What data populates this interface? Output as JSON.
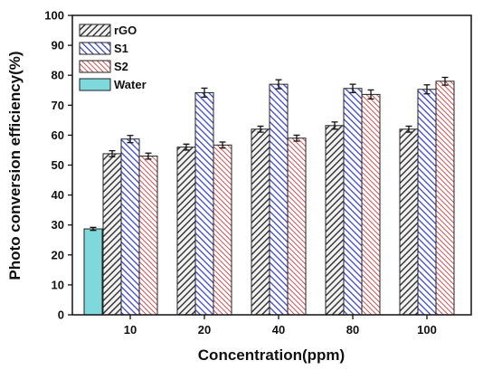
{
  "chart_data": {
    "type": "bar",
    "xlabel": "Concentration(ppm)",
    "ylabel": "Photo conversion efficiency(%)",
    "ylim": [
      0,
      100
    ],
    "yticks": [
      0,
      10,
      20,
      30,
      40,
      50,
      60,
      70,
      80,
      90,
      100
    ],
    "categories": [
      "10",
      "20",
      "40",
      "80",
      "100"
    ],
    "water": {
      "name": "Water",
      "value": 28.7,
      "error": 0.5,
      "color": "#7fd8dc"
    },
    "series": [
      {
        "name": "rGO",
        "color": "#3a3a3a",
        "pattern": "hatch-dark",
        "values": [
          53.8,
          56.0,
          62.0,
          63.2,
          62.0
        ],
        "errors": [
          1.0,
          1.0,
          1.0,
          1.2,
          1.0
        ]
      },
      {
        "name": "S1",
        "color": "#3b46d6",
        "pattern": "hatch-blue",
        "values": [
          58.7,
          74.2,
          77.0,
          75.6,
          75.3
        ],
        "errors": [
          1.2,
          1.5,
          1.5,
          1.4,
          1.5
        ]
      },
      {
        "name": "S2",
        "color": "#d9383a",
        "pattern": "hatch-red",
        "values": [
          53.0,
          56.7,
          59.0,
          73.6,
          78.0
        ],
        "errors": [
          1.0,
          1.0,
          1.0,
          1.5,
          1.3
        ]
      }
    ],
    "legend_position": "top-left",
    "grid": false
  }
}
